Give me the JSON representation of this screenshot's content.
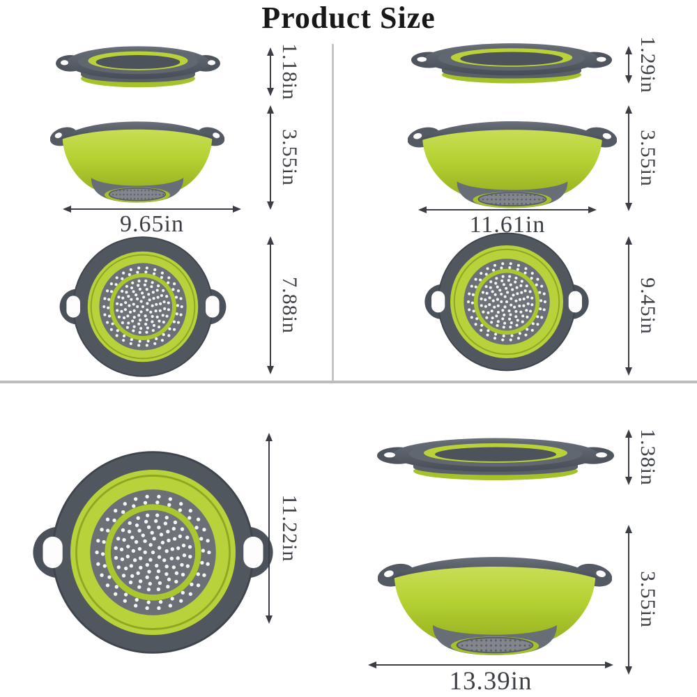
{
  "title": "Product Size",
  "unit": "in",
  "products": {
    "small": {
      "collapsed_height": "1.18in",
      "expanded_height": "3.55in",
      "width": "9.65in",
      "top_diameter": "7.88in"
    },
    "medium": {
      "collapsed_height": "1.29in",
      "expanded_height": "3.55in",
      "width": "11.61in",
      "top_diameter": "9.45in"
    },
    "large": {
      "top_diameter": "11.22in",
      "collapsed_height": "1.38in",
      "expanded_height": "3.55in",
      "width": "13.39in"
    }
  },
  "colors": {
    "green": "#b5d233",
    "green_dark": "#a5c22b",
    "rim_gray": "#565c65",
    "floor_gray": "#6b7077",
    "label": "#3c4046",
    "divider": "#c5c5c5"
  }
}
